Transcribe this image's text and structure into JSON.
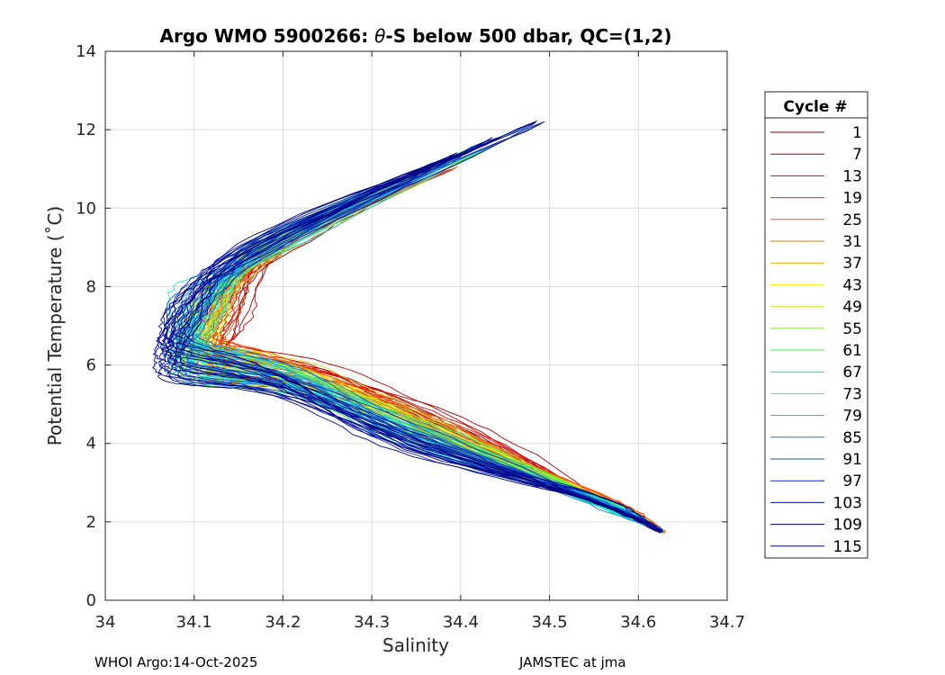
{
  "chart_data": {
    "type": "line",
    "title_prefix": "Argo WMO 5900266: ",
    "title_theta": "θ",
    "title_suffix": "-S below 500 dbar,  QC=(1,2)",
    "xlabel": "Salinity",
    "ylabel": "Potential Temperature (˚C)",
    "xlim": [
      34.0,
      34.7
    ],
    "ylim": [
      0,
      14
    ],
    "xticks": [
      "34",
      "34.1",
      "34.2",
      "34.3",
      "34.4",
      "34.5",
      "34.6",
      "34.7"
    ],
    "yticks": [
      "0",
      "2",
      "4",
      "6",
      "8",
      "10",
      "12",
      "14"
    ],
    "grid": true,
    "legend_title": "Cycle #",
    "legend_position": "outside-right",
    "legend_entries": [
      "1",
      "7",
      "13",
      "19",
      "25",
      "31",
      "37",
      "43",
      "49",
      "55",
      "61",
      "67",
      "73",
      "79",
      "85",
      "91",
      "97",
      "103",
      "109",
      "115"
    ],
    "legend_colors": [
      "#7f0000",
      "#b20000",
      "#e60000",
      "#ff1a00",
      "#ff4d00",
      "#d9800a",
      "#e6b800",
      "#f2f200",
      "#c8f032",
      "#8cf04a",
      "#46f046",
      "#1ae6a0",
      "#1ae6e6",
      "#14b4e6",
      "#0a78dc",
      "#1450c8",
      "#0a28b4",
      "#000aa0",
      "#00008c",
      "#000078"
    ],
    "series_summary": "Theta-S profiles for cycles 1-115; all converge near S=34.627, theta=1.75; salinity minimum near 34.05-34.12 at theta 6-7",
    "convergence_point": {
      "salinity": 34.627,
      "theta": 1.75
    }
  },
  "footer": {
    "left": "WHOI Argo:14-Oct-2025",
    "right": "JAMSTEC at jma"
  }
}
